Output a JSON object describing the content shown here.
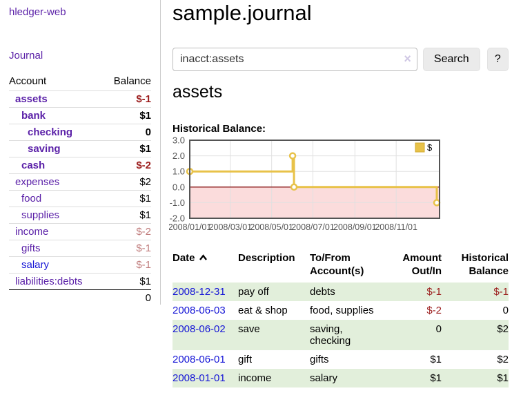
{
  "sidebar": {
    "app_title": "hledger-web",
    "journal_link": "Journal",
    "accounts_header": {
      "account": "Account",
      "balance": "Balance"
    },
    "accounts": [
      {
        "name": "assets",
        "depth": 1,
        "bold": true,
        "balance": "$-1",
        "balance_color": "negative"
      },
      {
        "name": "bank",
        "depth": 2,
        "bold": true,
        "balance": "$1",
        "balance_color": "normal"
      },
      {
        "name": "checking",
        "depth": 3,
        "bold": true,
        "balance": "0",
        "balance_color": "normal"
      },
      {
        "name": "saving",
        "depth": 3,
        "bold": true,
        "balance": "$1",
        "balance_color": "normal"
      },
      {
        "name": "cash",
        "depth": 2,
        "bold": true,
        "balance": "$-2",
        "balance_color": "negative"
      },
      {
        "name": "expenses",
        "depth": 1,
        "bold": false,
        "balance": "$2",
        "balance_color": "normal"
      },
      {
        "name": "food",
        "depth": 2,
        "bold": false,
        "balance": "$1",
        "balance_color": "normal"
      },
      {
        "name": "supplies",
        "depth": 2,
        "bold": false,
        "balance": "$1",
        "balance_color": "normal"
      },
      {
        "name": "income",
        "depth": 1,
        "bold": false,
        "balance": "$-2",
        "balance_color": "negative-light"
      },
      {
        "name": "gifts",
        "depth": 2,
        "bold": false,
        "balance": "$-1",
        "balance_color": "negative-light"
      },
      {
        "name": "salary",
        "depth": 2,
        "bold": false,
        "balance": "$-1",
        "balance_color": "negative-light",
        "link_color": "blue"
      },
      {
        "name": "liabilities:debts",
        "depth": 1,
        "bold": false,
        "balance": "$1",
        "balance_color": "normal"
      }
    ],
    "total": "0"
  },
  "main": {
    "title": "sample.journal",
    "search": {
      "value": "inacct:assets",
      "clear_icon": "×",
      "button": "Search",
      "help_button": "?"
    },
    "account_heading": "assets",
    "chart_label": "Historical Balance:"
  },
  "chart_data": {
    "type": "line",
    "step": true,
    "title": "Historical Balance",
    "series": [
      {
        "name": "$",
        "color": "#e8c249",
        "points": [
          [
            "2008-01-01",
            1
          ],
          [
            "2008-06-01",
            2
          ],
          [
            "2008-06-03",
            0
          ],
          [
            "2008-12-31",
            -1
          ]
        ]
      }
    ],
    "xlim": [
      "2008-01-01",
      "2008-12-31"
    ],
    "ylim": [
      -2,
      3
    ],
    "y_ticks": [
      {
        "value": 3,
        "label": "3.0"
      },
      {
        "value": 2,
        "label": "2.0"
      },
      {
        "value": 1,
        "label": "1.0"
      },
      {
        "value": 0,
        "label": "0.0"
      },
      {
        "value": -1,
        "label": "-1.0"
      },
      {
        "value": -2,
        "label": "-2.0"
      }
    ],
    "x_ticks": [
      {
        "date": "2008-01-01",
        "label": "2008/01/01"
      },
      {
        "date": "2008-03-01",
        "label": "2008/03/01"
      },
      {
        "date": "2008-05-01",
        "label": "2008/05/01"
      },
      {
        "date": "2008-07-01",
        "label": "2008/07/01"
      },
      {
        "date": "2008-09-01",
        "label": "2008/09/01"
      },
      {
        "date": "2008-11-01",
        "label": "2008/11/01"
      }
    ],
    "grid": true,
    "legend_position": "top-right",
    "negative_region_fill": "#fbdcdc",
    "zero_line_color": "#8b1a1a"
  },
  "register": {
    "headers": [
      "Date",
      "Description",
      "To/From Account(s)",
      "Amount Out/In",
      "Historical Balance"
    ],
    "rows": [
      {
        "date": "2008-12-31",
        "description": "pay off",
        "accounts": "debts",
        "amount": "$-1",
        "amount_color": "negative",
        "balance": "$-1",
        "balance_color": "negative",
        "shaded": true
      },
      {
        "date": "2008-06-03",
        "description": "eat & shop",
        "accounts": "food, supplies",
        "amount": "$-2",
        "amount_color": "negative",
        "balance": "0",
        "balance_color": "normal",
        "shaded": false
      },
      {
        "date": "2008-06-02",
        "description": "save",
        "accounts": "saving, checking",
        "amount": "0",
        "amount_color": "normal",
        "balance": "$2",
        "balance_color": "normal",
        "shaded": true
      },
      {
        "date": "2008-06-01",
        "description": "gift",
        "accounts": "gifts",
        "amount": "$1",
        "amount_color": "normal",
        "balance": "$2",
        "balance_color": "normal",
        "shaded": false
      },
      {
        "date": "2008-01-01",
        "description": "income",
        "accounts": "salary",
        "amount": "$1",
        "amount_color": "normal",
        "balance": "$1",
        "balance_color": "normal",
        "shaded": true
      }
    ]
  }
}
